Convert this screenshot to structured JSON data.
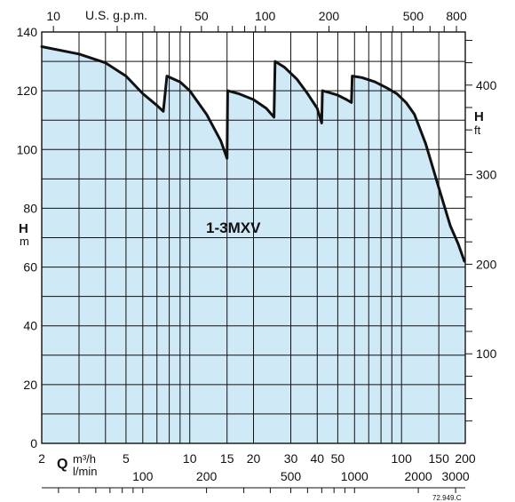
{
  "chart_data": {
    "type": "area",
    "series_label": "1-3MXV",
    "left_axis": {
      "label": "H",
      "unit": "m",
      "range": [
        0,
        140
      ],
      "ticks": [
        "0",
        "20",
        "40",
        "60",
        "80",
        "100",
        "120",
        "140"
      ]
    },
    "right_axis": {
      "label": "H",
      "unit": "ft",
      "ticks": [
        "100",
        "200",
        "300",
        "400"
      ]
    },
    "top_axis": {
      "unit": "U.S. g.p.m.",
      "ticks": [
        "10",
        "50",
        "100",
        "200",
        "500",
        "800"
      ]
    },
    "bottom_axis_m3h": {
      "label": "Q",
      "unit": "m³/h",
      "scale": "log",
      "range": [
        2,
        200
      ],
      "ticks": [
        "2",
        "5",
        "10",
        "15",
        "20",
        "30",
        "40",
        "50",
        "100",
        "150",
        "200"
      ]
    },
    "bottom_axis_lmin": {
      "unit": "l/min",
      "ticks": [
        "100",
        "200",
        "500",
        "1000",
        "2000",
        "3000"
      ]
    },
    "code": "72.949.C",
    "segments": [
      {
        "x": [
          2,
          3,
          4,
          5,
          6,
          7,
          7.5
        ],
        "y": [
          135,
          132.5,
          129.5,
          125,
          119,
          115,
          113
        ]
      },
      {
        "x": [
          7.5,
          7.8,
          9,
          10,
          12,
          14,
          15
        ],
        "y": [
          113,
          125,
          123,
          120,
          112,
          103,
          97
        ]
      },
      {
        "x": [
          15,
          15.1,
          17,
          20,
          23,
          25
        ],
        "y": [
          97,
          120,
          119,
          117,
          114,
          111
        ]
      },
      {
        "x": [
          25,
          25.3,
          28,
          32,
          36,
          40,
          42
        ],
        "y": [
          111,
          130,
          128,
          124,
          119,
          114,
          109
        ]
      },
      {
        "x": [
          42,
          42.3,
          45,
          50,
          55,
          58
        ],
        "y": [
          109,
          120,
          119.5,
          118.5,
          117,
          116
        ]
      },
      {
        "x": [
          58,
          58.5,
          65,
          75,
          85,
          95,
          105,
          115,
          130,
          150,
          170,
          185,
          198
        ],
        "y": [
          116,
          125,
          124.5,
          123,
          121,
          119,
          116,
          112,
          102,
          87,
          74,
          68,
          62
        ]
      }
    ]
  }
}
